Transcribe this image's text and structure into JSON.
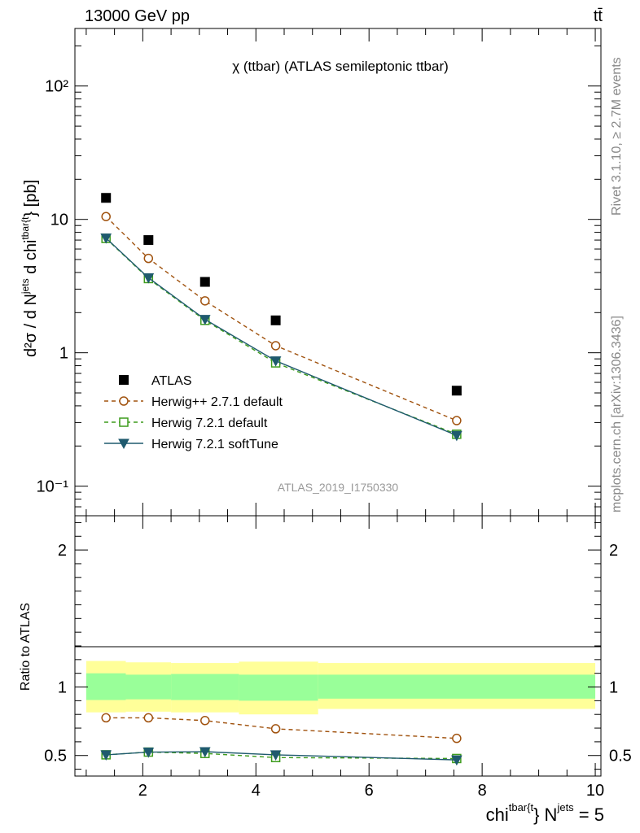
{
  "header": {
    "energy_label": "13000 GeV pp",
    "process_label": "tt̄",
    "side_label_top": "Rivet 3.1.10, ≥ 2.7M events",
    "side_label_bottom": "mcplots.cern.ch [arXiv:1306.3436]"
  },
  "chart_data": [
    {
      "type": "scatter",
      "title": "χ (ttbar) (ATLAS semileptonic ttbar)",
      "watermark": "ATLAS_2019_I1750330",
      "ylabel": {
        "main": "d²σ / d N",
        "sup1": "jets",
        "mid": " d chi",
        "sup2": "tbar{t",
        "end": "} [pb]"
      },
      "yscale": "log",
      "ylim": [
        0.06,
        270
      ],
      "xlim": [
        0.8,
        10.1
      ],
      "y_tick_labels": [
        "10⁻¹",
        "1",
        "10",
        "10²"
      ],
      "x": [
        1.35,
        2.1,
        3.1,
        4.35,
        7.55
      ],
      "series": [
        {
          "name": "ATLAS",
          "style": "data",
          "color": "#000000",
          "values": [
            14.5,
            7.0,
            3.4,
            1.75,
            0.52
          ]
        },
        {
          "name": "Herwig++ 2.7.1 default",
          "style": "dashed-circle",
          "color": "#a0520e",
          "values": [
            10.5,
            5.1,
            2.45,
            1.13,
            0.31
          ]
        },
        {
          "name": "Herwig 7.2.1 default",
          "style": "dashed-square",
          "color": "#3d9c1c",
          "values": [
            7.2,
            3.6,
            1.75,
            0.84,
            0.245
          ]
        },
        {
          "name": "Herwig 7.2.1 softTune",
          "style": "solid-triangle",
          "color": "#1f5a6e",
          "values": [
            7.25,
            3.65,
            1.78,
            0.87,
            0.24
          ]
        }
      ],
      "legend_position": "bottom-left"
    },
    {
      "type": "line",
      "ylabel": "Ratio to ATLAS",
      "xlabel": {
        "main": "chi",
        "sup1": "tbar{t",
        "mid": "} N",
        "sup2": "jets",
        "end": " = 5"
      },
      "ylim": [
        0.35,
        2.25
      ],
      "xlim": [
        0.8,
        10.1
      ],
      "y_tick_labels": [
        "0.5",
        "1",
        "2"
      ],
      "x_tick_labels": [
        "2",
        "4",
        "6",
        "8",
        "10"
      ],
      "bin_edges": [
        1.0,
        1.7,
        2.5,
        3.7,
        5.1,
        10.0
      ],
      "stat_band_lo": [
        0.905,
        0.91,
        0.905,
        0.9,
        0.915
      ],
      "stat_band_hi": [
        1.1,
        1.09,
        1.095,
        1.09,
        1.09
      ],
      "total_band_lo": [
        0.815,
        0.82,
        0.815,
        0.8,
        0.84
      ],
      "total_band_hi": [
        1.19,
        1.18,
        1.175,
        1.185,
        1.175
      ],
      "x": [
        1.35,
        2.1,
        3.1,
        4.35,
        7.55
      ],
      "series": [
        {
          "name": "Herwig++ 2.7.1 default",
          "color": "#a0520e",
          "values": [
            0.775,
            0.775,
            0.755,
            0.695,
            0.625
          ]
        },
        {
          "name": "Herwig 7.2.1 default",
          "color": "#3d9c1c",
          "values": [
            0.505,
            0.525,
            0.515,
            0.485,
            0.478
          ]
        },
        {
          "name": "Herwig 7.2.1 softTune",
          "color": "#1f5a6e",
          "values": [
            0.505,
            0.525,
            0.528,
            0.505,
            0.468
          ]
        }
      ],
      "band_colors": {
        "total": "#ffff99",
        "stat": "#99ff99"
      }
    }
  ]
}
